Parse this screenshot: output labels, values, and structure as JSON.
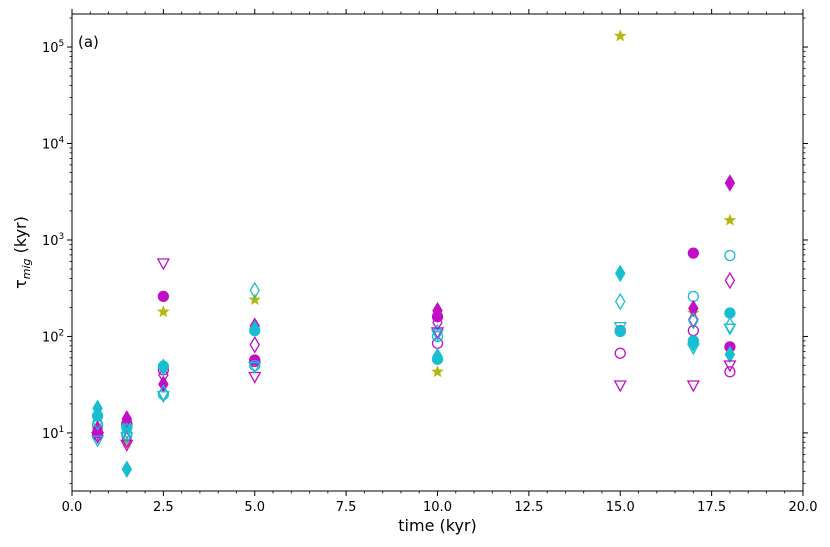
{
  "chart_data": {
    "type": "scatter",
    "panel_label": "(a)",
    "xlabel": "time (kyr)",
    "ylabel_main": "τ",
    "ylabel_sub": "mig",
    "ylabel_unit": " (kyr)",
    "xlim": [
      0.0,
      20.0
    ],
    "ylim": [
      2.5,
      220000
    ],
    "yscale": "log",
    "grid": false,
    "x_ticks": [
      0.0,
      2.5,
      5.0,
      7.5,
      10.0,
      12.5,
      15.0,
      17.5,
      20.0
    ],
    "x_tick_labels": [
      "0.0",
      "2.5",
      "5.0",
      "7.5",
      "10.0",
      "12.5",
      "15.0",
      "17.5",
      "20.0"
    ],
    "y_ticks": [
      10,
      100,
      1000,
      10000,
      100000
    ],
    "y_tick_bases": [
      "10",
      "10",
      "10",
      "10",
      "10"
    ],
    "y_tick_exps": [
      "1",
      "2",
      "3",
      "4",
      "5"
    ],
    "colors": {
      "cyan": "#17becf",
      "magenta": "#c20fc7",
      "olive": "#b5b80c"
    },
    "series": [
      {
        "marker": "star",
        "color": "olive",
        "filled": true,
        "x": [
          0.7,
          1.5,
          2.5,
          5.0,
          10.0,
          15.0,
          17.0,
          18.0
        ],
        "y": [
          11.5,
          8,
          180,
          240,
          43,
          130000,
          175,
          1600
        ]
      },
      {
        "marker": "circle",
        "color": "magenta",
        "filled": true,
        "x": [
          0.7,
          1.5,
          2.5,
          5.0,
          10.0,
          15.0,
          17.0,
          18.0
        ],
        "y": [
          10,
          12.5,
          260,
          57,
          160,
          115,
          730,
          78
        ]
      },
      {
        "marker": "circle",
        "color": "magenta",
        "filled": false,
        "x": [
          0.7,
          1.5,
          2.5,
          5.0,
          10.0,
          15.0,
          17.0,
          18.0
        ],
        "y": [
          9.5,
          12,
          45,
          55,
          85,
          67,
          115,
          43
        ]
      },
      {
        "marker": "circle",
        "color": "cyan",
        "filled": true,
        "x": [
          0.7,
          1.5,
          2.5,
          5.0,
          10.0,
          15.0,
          17.0,
          18.0
        ],
        "y": [
          15,
          11.5,
          49,
          115,
          58,
          113,
          90,
          175
        ]
      },
      {
        "marker": "circle",
        "color": "cyan",
        "filled": false,
        "x": [
          0.7,
          1.5,
          2.5,
          5.0,
          10.0,
          15.0,
          17.0,
          18.0
        ],
        "y": [
          12,
          9.5,
          25,
          50,
          100,
          113,
          260,
          690
        ]
      },
      {
        "marker": "diamond",
        "color": "magenta",
        "filled": true,
        "x": [
          0.7,
          1.5,
          2.5,
          5.0,
          10.0,
          17.0,
          18.0
        ],
        "y": [
          11,
          14,
          32,
          128,
          185,
          195,
          3900
        ]
      },
      {
        "marker": "diamond",
        "color": "magenta",
        "filled": false,
        "x": [
          0.7,
          1.5,
          2.5,
          5.0,
          10.0,
          17.0,
          18.0
        ],
        "y": [
          10.5,
          8.5,
          40,
          82,
          140,
          150,
          380
        ]
      },
      {
        "marker": "diamond",
        "color": "cyan",
        "filled": true,
        "x": [
          0.7,
          1.5,
          2.5,
          5.0,
          10.0,
          15.0,
          17.0,
          18.0
        ],
        "y": [
          18,
          4.2,
          48,
          120,
          62,
          450,
          85,
          65
        ]
      },
      {
        "marker": "diamond",
        "color": "cyan",
        "filled": false,
        "x": [
          0.7,
          1.5,
          2.5,
          5.0,
          10.0,
          15.0,
          17.0,
          18.0
        ],
        "y": [
          13,
          10.5,
          26,
          300,
          110,
          230,
          145,
          130
        ]
      },
      {
        "marker": "triangle_down",
        "color": "magenta",
        "filled": false,
        "x": [
          0.7,
          1.5,
          2.5,
          5.0,
          10.0,
          15.0,
          17.0,
          18.0
        ],
        "y": [
          9,
          7.5,
          570,
          38,
          110,
          31,
          31,
          50
        ]
      },
      {
        "marker": "triangle_down",
        "color": "cyan",
        "filled": false,
        "x": [
          0.7,
          1.5,
          2.5,
          5.0,
          10.0,
          15.0,
          17.0,
          18.0
        ],
        "y": [
          8.3,
          9,
          24,
          48,
          105,
          125,
          75,
          120
        ]
      }
    ]
  }
}
